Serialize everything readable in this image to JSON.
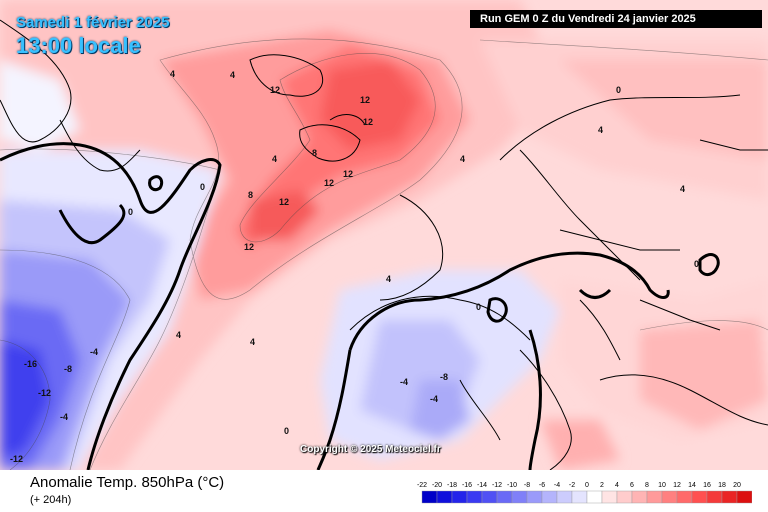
{
  "header": {
    "date": "Samedi 1 février 2025",
    "time": "13:00 locale",
    "run": "Run GEM 0 Z du Vendredi 24 janvier 2025"
  },
  "copyright": "Copyright © 2025 Meteociel.fr",
  "footer": {
    "title": "Anomalie Temp. 850hPa (°C)",
    "subtitle": "(+ 204h)"
  },
  "legend": {
    "ticks": [
      "-22",
      "-20",
      "-18",
      "-16",
      "-14",
      "-12",
      "-10",
      "-8",
      "-6",
      "-4",
      "-2",
      "0",
      "2",
      "4",
      "6",
      "8",
      "10",
      "12",
      "14",
      "16",
      "18",
      "20"
    ],
    "colors": [
      "#0000c8",
      "#1010dc",
      "#2424ea",
      "#3a3af2",
      "#5050f4",
      "#6a6af6",
      "#8080f8",
      "#9a9afa",
      "#b4b4fc",
      "#ccccfd",
      "#e4e4fe",
      "#ffffff",
      "#ffe4e4",
      "#ffcccc",
      "#ffb4b4",
      "#ff9a9a",
      "#ff8080",
      "#ff6a6a",
      "#ff5050",
      "#f43a3a",
      "#ea2424",
      "#dc1010"
    ]
  },
  "map_labels": [
    "12",
    "12",
    "12",
    "12",
    "12",
    "12",
    "12",
    "8",
    "8",
    "4",
    "4",
    "4",
    "4",
    "4",
    "4",
    "4",
    "4",
    "4",
    "0",
    "0",
    "0",
    "0",
    "0",
    "0",
    "-4",
    "-4",
    "-4",
    "-4",
    "-8",
    "-8",
    "-12",
    "-12",
    "-16"
  ]
}
